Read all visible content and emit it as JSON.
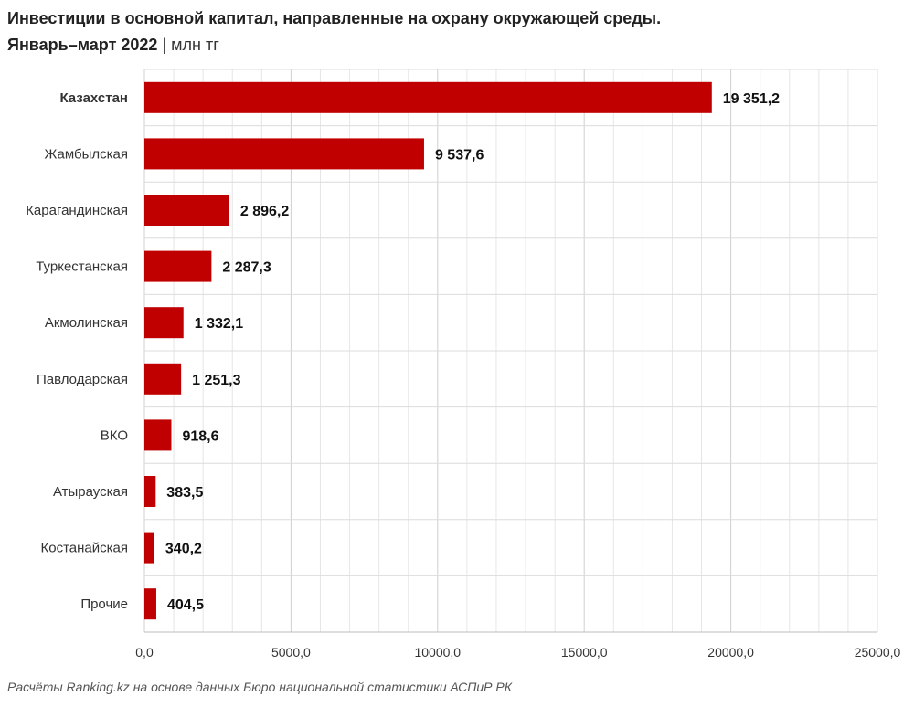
{
  "chart_data": {
    "type": "bar",
    "orientation": "horizontal",
    "title": "Инвестиции в основной капитал, направленные на охрану окружающей среды.",
    "subtitle": "Январь–март 2022",
    "unit": "млн тг",
    "categories": [
      "Казахстан",
      "Жамбылская",
      "Карагандинская",
      "Туркестанская",
      "Акмолинская",
      "Павлодарская",
      "ВКО",
      "Атырауская",
      "Костанайская",
      "Прочие"
    ],
    "values": [
      19351.2,
      9537.6,
      2896.2,
      2287.3,
      1332.1,
      1251.3,
      918.6,
      383.5,
      340.2,
      404.5
    ],
    "value_labels": [
      "19 351,2",
      "9 537,6",
      "2 896,2",
      "2 287,3",
      "1 332,1",
      "1 251,3",
      "918,6",
      "383,5",
      "340,2",
      "404,5"
    ],
    "bold_categories": [
      "Казахстан"
    ],
    "xlim": [
      0,
      25000
    ],
    "xticks": [
      0,
      5000,
      10000,
      15000,
      20000,
      25000
    ],
    "xtick_labels": [
      "0,0",
      "5000,0",
      "10000,0",
      "15000,0",
      "20000,0",
      "25000,0"
    ],
    "grid": true,
    "bar_color": "#c00000"
  },
  "source_note": "Расчёты Ranking.kz на основе данных Бюро национальной статистики АСПиР РК"
}
